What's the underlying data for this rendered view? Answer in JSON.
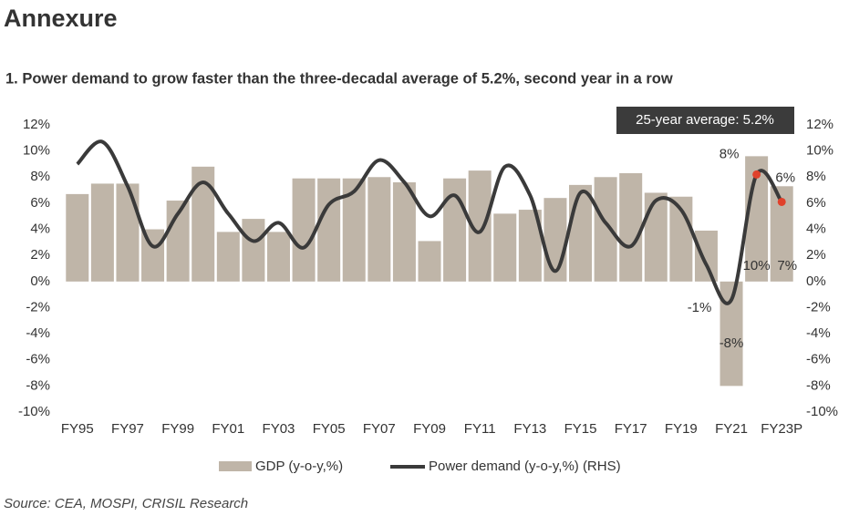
{
  "header": {
    "title": "Annexure",
    "subtitle": "1.   Power demand to grow faster than the three-decadal average of 5.2%, second year in a row"
  },
  "chart_data": {
    "type": "bar-line",
    "annotation": "25-year average: 5.2%",
    "categories": [
      "FY95",
      null,
      "FY97",
      null,
      "FY99",
      null,
      "FY01",
      null,
      "FY03",
      null,
      "FY05",
      null,
      "FY07",
      null,
      "FY09",
      null,
      "FY11",
      null,
      "FY13",
      null,
      "FY15",
      null,
      "FY17",
      null,
      "FY19",
      null,
      "FY21",
      null,
      "FY23P"
    ],
    "series": [
      {
        "name": "GDP (y-o-y,%)",
        "type": "bar",
        "color": "#bfb5a8",
        "values": [
          6.7,
          7.5,
          7.5,
          4.0,
          6.2,
          8.8,
          3.8,
          4.8,
          3.8,
          7.9,
          7.9,
          7.9,
          8.0,
          7.6,
          3.1,
          7.9,
          8.5,
          5.2,
          5.5,
          6.4,
          7.4,
          8.0,
          8.3,
          6.8,
          6.5,
          3.9,
          -8.0,
          9.6,
          7.3
        ],
        "value_labels": [
          null,
          null,
          null,
          null,
          null,
          null,
          null,
          null,
          null,
          null,
          null,
          null,
          null,
          null,
          null,
          null,
          null,
          null,
          null,
          null,
          null,
          null,
          null,
          null,
          null,
          null,
          "-8%",
          "10%",
          "7%"
        ]
      },
      {
        "name": "Power demand (y-o-y,%) (RHS)",
        "type": "line",
        "axis": "y2",
        "color": "#3a3a3a",
        "highlight_color": "#e0412b",
        "values": [
          9.0,
          10.7,
          7.3,
          2.7,
          5.2,
          7.6,
          5.2,
          3.1,
          4.5,
          2.6,
          5.9,
          6.9,
          9.3,
          7.6,
          5.0,
          6.6,
          3.8,
          8.8,
          6.6,
          0.8,
          6.8,
          4.5,
          2.7,
          6.2,
          5.5,
          1.3,
          -1.4,
          8.2,
          6.1
        ],
        "value_labels": [
          null,
          null,
          null,
          null,
          null,
          null,
          null,
          null,
          null,
          null,
          null,
          null,
          null,
          null,
          null,
          null,
          null,
          null,
          null,
          null,
          null,
          null,
          null,
          null,
          null,
          null,
          "-1%",
          "8%",
          "6%"
        ]
      }
    ],
    "ylim": [
      -10,
      12
    ],
    "yticks": [
      {
        "value": -10,
        "label": "-10%"
      },
      {
        "value": -8,
        "label": "-8%"
      },
      {
        "value": -6,
        "label": "-6%"
      },
      {
        "value": -4,
        "label": "-4%"
      },
      {
        "value": -2,
        "label": "-2%"
      },
      {
        "value": 0,
        "label": "0%"
      },
      {
        "value": 2,
        "label": "2%"
      },
      {
        "value": 4,
        "label": "4%"
      },
      {
        "value": 6,
        "label": "6%"
      },
      {
        "value": 8,
        "label": "8%"
      },
      {
        "value": 10,
        "label": "10%"
      },
      {
        "value": 12,
        "label": "12%"
      }
    ],
    "y2lim": [
      -10,
      12
    ],
    "y2ticks": [
      {
        "value": -10,
        "label": "-10%"
      },
      {
        "value": -8,
        "label": "-8%"
      },
      {
        "value": -6,
        "label": "-6%"
      },
      {
        "value": -4,
        "label": "-4%"
      },
      {
        "value": -2,
        "label": "-2%"
      },
      {
        "value": 0,
        "label": "0%"
      },
      {
        "value": 2,
        "label": "2%"
      },
      {
        "value": 4,
        "label": "4%"
      },
      {
        "value": 6,
        "label": "6%"
      },
      {
        "value": 8,
        "label": "8%"
      },
      {
        "value": 10,
        "label": "10%"
      },
      {
        "value": 12,
        "label": "12%"
      }
    ],
    "source": "Source: CEA, MOSPI, CRISIL Research"
  }
}
